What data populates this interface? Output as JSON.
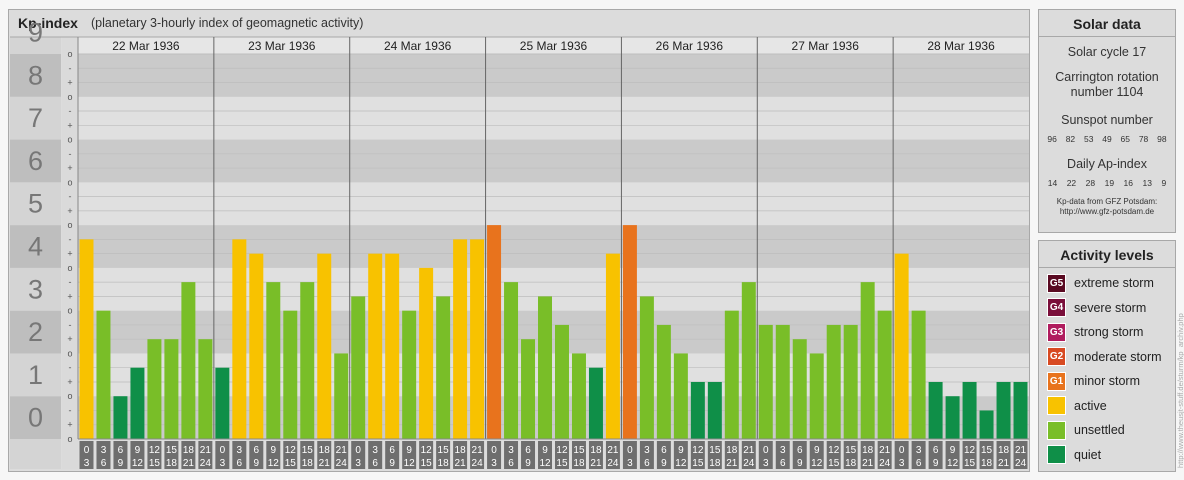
{
  "header": {
    "title": "Kp-index",
    "subtitle": "(planetary 3-hourly index of geomagnetic activity)"
  },
  "chart_data": {
    "type": "bar",
    "title": "Kp-index",
    "subtitle": "(planetary 3-hourly index of geomagnetic activity)",
    "y_range": [
      0,
      9
    ],
    "y_ticks": [
      "0",
      "1",
      "2",
      "3",
      "4",
      "5",
      "6",
      "7",
      "8",
      "9"
    ],
    "subticks": [
      "-",
      "o",
      "+"
    ],
    "interval_labels": [
      [
        "0",
        "3"
      ],
      [
        "3",
        "6"
      ],
      [
        "6",
        "9"
      ],
      [
        "9",
        "12"
      ],
      [
        "12",
        "15"
      ],
      [
        "15",
        "18"
      ],
      [
        "18",
        "21"
      ],
      [
        "21",
        "24"
      ]
    ],
    "days": [
      {
        "date": "22 Mar 1936",
        "values": [
          4.667,
          3.0,
          1.0,
          1.667,
          2.333,
          2.333,
          3.667,
          2.333
        ]
      },
      {
        "date": "23 Mar 1936",
        "values": [
          1.667,
          4.667,
          4.333,
          3.667,
          3.0,
          3.667,
          4.333,
          2.0
        ]
      },
      {
        "date": "24 Mar 1936",
        "values": [
          3.333,
          4.333,
          4.333,
          3.0,
          4.0,
          3.333,
          4.667,
          4.667
        ]
      },
      {
        "date": "25 Mar 1936",
        "values": [
          5.0,
          3.667,
          2.333,
          3.333,
          2.667,
          2.0,
          1.667,
          4.333
        ]
      },
      {
        "date": "26 Mar 1936",
        "values": [
          5.0,
          3.333,
          2.667,
          2.0,
          1.333,
          1.333,
          3.0,
          3.667
        ]
      },
      {
        "date": "27 Mar 1936",
        "values": [
          2.667,
          2.667,
          2.333,
          2.0,
          2.667,
          2.667,
          3.667,
          3.0
        ]
      },
      {
        "date": "28 Mar 1936",
        "values": [
          4.333,
          3.0,
          1.333,
          1.0,
          1.333,
          0.667,
          1.333,
          1.333
        ]
      }
    ],
    "color_rules": [
      {
        "min": 5.0,
        "color": "#e8731d"
      },
      {
        "min": 4.0,
        "color": "#f8c200"
      },
      {
        "min": 2.0,
        "color": "#79be28"
      },
      {
        "min": 0,
        "color": "#0f8f48"
      }
    ],
    "grid": true
  },
  "solar": {
    "title": "Solar data",
    "cycle": "Solar cycle 17",
    "carrington_1": "Carrington rotation",
    "carrington_2": "number 1104",
    "sunspot_title": "Sunspot number",
    "sunspots": [
      "96",
      "82",
      "53",
      "49",
      "65",
      "78",
      "98"
    ],
    "ap_title": "Daily Ap-index",
    "ap": [
      "14",
      "22",
      "28",
      "19",
      "16",
      "13",
      "9"
    ],
    "credit_1": "Kp-data from GFZ Potsdam:",
    "credit_2": "http://www.gfz-potsdam.de"
  },
  "levels": {
    "title": "Activity levels",
    "items": [
      {
        "code": "G5",
        "label": "extreme storm",
        "color": "#5a0a22"
      },
      {
        "code": "G4",
        "label": "severe storm",
        "color": "#7a0e3a"
      },
      {
        "code": "G3",
        "label": "strong storm",
        "color": "#b01c5e"
      },
      {
        "code": "G2",
        "label": "moderate storm",
        "color": "#d84a22"
      },
      {
        "code": "G1",
        "label": "minor storm",
        "color": "#e8731d"
      },
      {
        "code": "",
        "label": "active",
        "color": "#f8c200"
      },
      {
        "code": "",
        "label": "unsettled",
        "color": "#79be28"
      },
      {
        "code": "",
        "label": "quiet",
        "color": "#0f8f48"
      }
    ]
  },
  "watermark": "http://www.theusjt-stuff.de/sturm/kp_archiv.php"
}
